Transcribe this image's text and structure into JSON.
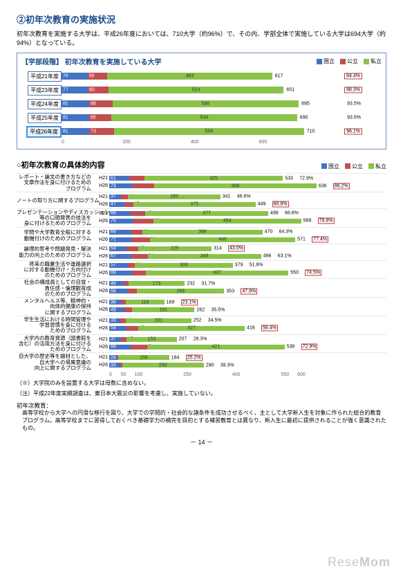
{
  "title": "②初年次教育の実施状況",
  "intro": "初年次教育を実施する大学は、平成26年度においては、710大学（約96%）で、その内、学部全体で実施している大学は694大学（約94%）となっている。",
  "colors": {
    "national": "#4472c4",
    "public": "#c05050",
    "private": "#8bc34a",
    "grid": "#ddd",
    "border": "#7090c0",
    "pct_box": "#cc3333"
  },
  "legend": {
    "national": "国立",
    "public": "公立",
    "private": "私立"
  },
  "chart1": {
    "title": "【学部段階】 初年次教育を実施している大学",
    "xmax": 800,
    "xticks": [
      0,
      200,
      400,
      600
    ],
    "highlight_row": 4,
    "rows": [
      {
        "label": "平成21年度",
        "vals": [
          76,
          58,
          483
        ],
        "total": 617,
        "pct": "84.4%",
        "box": true
      },
      {
        "label": "平成23年度",
        "vals": [
          77,
          60,
          514
        ],
        "total": 651,
        "pct": "88.3%",
        "box": true
      },
      {
        "label": "平成24年度",
        "vals": [
          81,
          68,
          546
        ],
        "total": 695,
        "pct": "93.5%",
        "box": false
      },
      {
        "label": "平成25年度",
        "vals": [
          81,
          65,
          544
        ],
        "total": 690,
        "pct": "93.5%",
        "box": false
      },
      {
        "label": "平成26年度",
        "vals": [
          81,
          73,
          556
        ],
        "total": 710,
        "pct": "96.1%",
        "box": true
      }
    ]
  },
  "chart2": {
    "title": "○初年次教育の具体的内容",
    "xmax": 700,
    "xticks": [
      0,
      50,
      100,
      250,
      400,
      550,
      600
    ],
    "groups": [
      {
        "label": "レポート・論文の書き方などの\n文章作法を身に付けるための\nプログラム",
        "rows": [
          {
            "yr": "H21",
            "v": [
              61,
              47,
              425
            ],
            "t": 533,
            "p": "72.9%",
            "box": false
          },
          {
            "yr": "H26",
            "v": [
              73,
              65,
              498
            ],
            "t": 636,
            "p": "86.2%",
            "box": true
          }
        ]
      },
      {
        "label": "ノートの取り方に関するプログラム",
        "rows": [
          {
            "yr": "H21",
            "v": [
              37,
              21,
              283
            ],
            "t": 341,
            "p": "46.6%",
            "box": false
          },
          {
            "yr": "H26",
            "v": [
              47,
              27,
              375
            ],
            "t": 449,
            "p": "60.8%",
            "box": true
          }
        ]
      },
      {
        "label": "プレゼンテーションやディスカッション\n等の口頭発表の技法を\n身に付けるためのプログラム",
        "rows": [
          {
            "yr": "H21",
            "v": [
              66,
              45,
              377
            ],
            "t": 488,
            "p": "66.8%",
            "box": false
          },
          {
            "yr": "H26",
            "v": [
              75,
              60,
              454
            ],
            "t": 589,
            "p": "79.8%",
            "box": true
          }
        ]
      },
      {
        "label": "学問や大学教育全般に対する\n動機付けのためのプログラム",
        "rows": [
          {
            "yr": "H21",
            "v": [
              68,
              34,
              368
            ],
            "t": 470,
            "p": "64.3%",
            "box": false
          },
          {
            "yr": "H26",
            "v": [
              71,
              54,
              446
            ],
            "t": 571,
            "p": "77.4%",
            "box": true
          }
        ]
      },
      {
        "label": "論理的思考や問題発見・解決\n能力の向上のためのプログラム",
        "rows": [
          {
            "yr": "H21",
            "v": [
              54,
              35,
              225
            ],
            "t": 314,
            "p": "43.0%",
            "box": true
          },
          {
            "yr": "H26",
            "v": [
              67,
              51,
              348
            ],
            "t": 466,
            "p": "63.1%",
            "box": false
          }
        ]
      },
      {
        "label": "将来の職業生活や進路選択\nに対する動機付け・方向付け\nのためのプログラム",
        "rows": [
          {
            "yr": "H21",
            "v": [
              57,
              22,
              300
            ],
            "t": 379,
            "p": "51.8%",
            "box": false
          },
          {
            "yr": "H26",
            "v": [
              69,
              44,
              437
            ],
            "t": 550,
            "p": "74.5%",
            "box": true
          }
        ]
      },
      {
        "label": "社会の構成員としての自覚・\n責任感・倫理観育成\nのためのプログラム",
        "rows": [
          {
            "yr": "H21",
            "v": [
              46,
              13,
              173
            ],
            "t": 232,
            "p": "31.7%",
            "box": false
          },
          {
            "yr": "H26",
            "v": [
              58,
              27,
              268
            ],
            "t": 353,
            "p": "47.8%",
            "box": true
          }
        ]
      },
      {
        "label": "メンタルヘルス等、精神的・\n肉体的健康の保持\nに関するプログラム",
        "rows": [
          {
            "yr": "H21",
            "v": [
              36,
              15,
              118
            ],
            "t": 169,
            "p": "23.1%",
            "box": true
          },
          {
            "yr": "H26",
            "v": [
              49,
              22,
              191
            ],
            "t": 262,
            "p": "35.5%",
            "box": false
          }
        ]
      },
      {
        "label": "学生生活における時間管理や\n学習習慣を身に付ける\nためのプログラム",
        "rows": [
          {
            "yr": "H21",
            "v": [
              33,
              18,
              201
            ],
            "t": 252,
            "p": "34.5%",
            "box": false
          },
          {
            "yr": "H26",
            "v": [
              54,
              35,
              327
            ],
            "t": 416,
            "p": "56.4%",
            "box": true
          }
        ]
      },
      {
        "label": "大学内の教育資源（図書館を\n含む）の活用方法を身に付ける\nためのプログラム",
        "rows": [
          {
            "yr": "H21",
            "v": [
              37,
              17,
              153
            ],
            "t": 207,
            "p": "28.3%",
            "box": false
          },
          {
            "yr": "H26",
            "v": [
              66,
              51,
              421
            ],
            "t": 538,
            "p": "72.9%",
            "box": true
          }
        ]
      },
      {
        "label": "自大学の歴史等を題材とした、\n自大学への帰属意識の\n向上に関するプログラム",
        "rows": [
          {
            "yr": "H21",
            "v": [
              24,
              4,
              156
            ],
            "t": 184,
            "p": "25.2%",
            "box": true
          },
          {
            "yr": "H26",
            "v": [
              33,
              7,
              250
            ],
            "t": 290,
            "p": "39.3%",
            "box": false
          }
        ]
      }
    ]
  },
  "footnotes": [
    "（※）大学院のみを設置する大学は母数に含めない。",
    "（注）平成22年度実績調査は、東日本大震災の影響を考慮し、実施していない。"
  ],
  "def_title": "初年次教育：",
  "def_body": "高等学校から大学への円滑な移行を図り、大学での学問的・社会的な諸条件を成功させるべく、主として大学新入生を対象に作られた総合的教育プログラム。高等学校までに習得しておくべき基礎学力の補完を目的とする補習教育とは異なり、新入生に最初に提供されることが強く意識されたもの。",
  "page_num": "－ 14 －",
  "watermark": "ReseMom"
}
